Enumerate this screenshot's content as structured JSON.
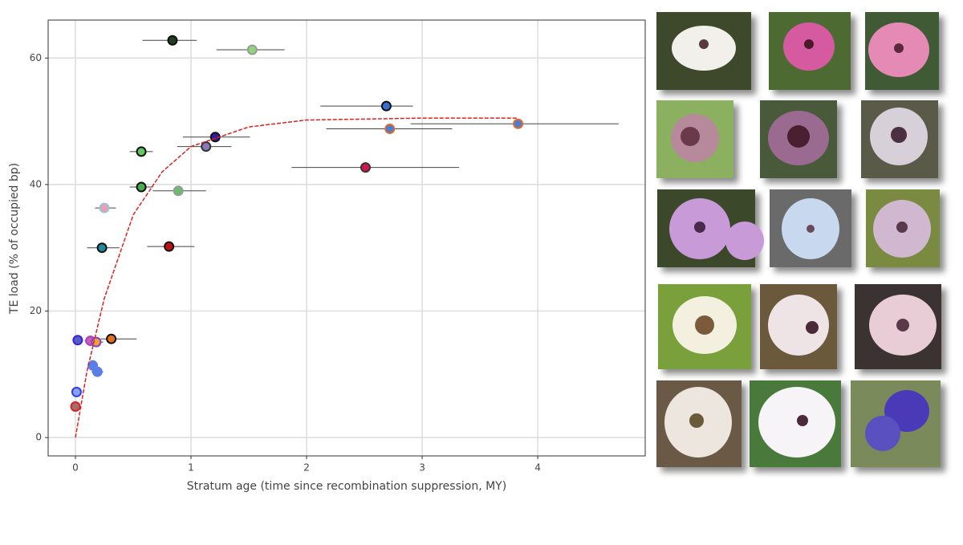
{
  "chart_data": {
    "type": "scatter",
    "xlabel": "Stratum age (time since recombination suppression, MY)",
    "ylabel": "TE load (% of occupied bp)",
    "xlim": [
      -0.236,
      4.93
    ],
    "ylim": [
      -2.9,
      66
    ],
    "xticks": [
      0,
      1,
      2,
      3,
      4
    ],
    "yticks": [
      0,
      20,
      40,
      60
    ],
    "grid": true,
    "x": [
      0.84,
      1.53,
      2.69,
      3.83,
      2.72,
      1.21,
      1.13,
      0.57,
      2.51,
      0.57,
      0.89,
      0.25,
      0.23,
      0.81,
      0.31,
      0.02,
      0.13,
      0.18,
      0.15,
      0.19,
      0.01,
      0.0
    ],
    "values": [
      62.8,
      61.3,
      52.4,
      49.6,
      48.8,
      47.5,
      46.0,
      45.2,
      42.7,
      39.6,
      39.0,
      36.3,
      30.0,
      30.2,
      15.6,
      15.4,
      15.3,
      15.1,
      11.4,
      10.4,
      7.2,
      4.9
    ],
    "x_lower": [
      0.58,
      1.22,
      2.12,
      2.9,
      2.17,
      0.93,
      0.88,
      0.47,
      1.87,
      0.47,
      0.67,
      0.17,
      0.1,
      0.62,
      0.22,
      0.0,
      0.08,
      0.12,
      0.12,
      0.14,
      0.0,
      0.0
    ],
    "x_upper": [
      1.05,
      1.81,
      2.92,
      4.7,
      3.26,
      1.51,
      1.35,
      0.67,
      3.32,
      0.67,
      1.13,
      0.35,
      0.38,
      1.03,
      0.53,
      0.05,
      0.18,
      0.24,
      0.18,
      0.24,
      0.03,
      0.02
    ],
    "colors": [
      "#1f3d1f",
      "#8fd67a",
      "#3a6ed0",
      "#4a7fd0",
      "#4a7fd0",
      "#2b1fa0",
      "#8a7ab8",
      "#5fc85f",
      "#d0174e",
      "#4aaa50",
      "#66c06a",
      "#e8a0b0",
      "#1f8a95",
      "#c01010",
      "#e07020",
      "#5060c8",
      "#c060c0",
      "#f0a040",
      "#5a7ee8",
      "#5a7ee8",
      "#8aa0f0",
      "#a07070"
    ],
    "edge_colors": [
      "#111111",
      "#999999",
      "#111111",
      "#e06a2e",
      "#e06a2e",
      "#111111",
      "#333333",
      "#111111",
      "#333333",
      "#111111",
      "#999999",
      "#9ac0e0",
      "#111111",
      "#111111",
      "#111111",
      "#4020d0",
      "#b040b0",
      "#8040c0",
      "#5a7ee8",
      "#5a7ee8",
      "#3040e0",
      "#e02020"
    ],
    "fit": {
      "type": "line",
      "color": "#e02020",
      "x": [
        0,
        0.1,
        0.25,
        0.5,
        0.75,
        1,
        1.5,
        2,
        3,
        3.83
      ],
      "values": [
        0,
        10.5,
        22,
        35.2,
        42,
        46,
        49.1,
        50.2,
        50.5,
        50.5
      ]
    }
  }
}
